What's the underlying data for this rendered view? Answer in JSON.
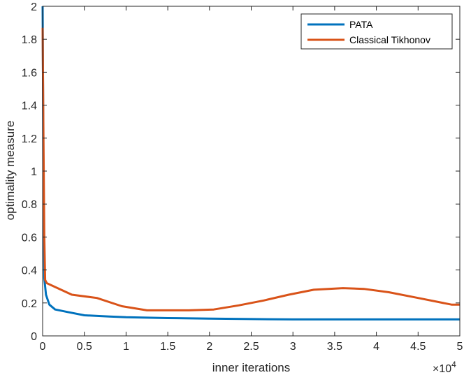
{
  "chart_data": {
    "type": "line",
    "title": "",
    "xlabel": "inner iterations",
    "ylabel": "optimality measure",
    "x_exponent_label": "×10",
    "x_exponent_power": "4",
    "xlim": [
      0,
      5
    ],
    "ylim": [
      0,
      2
    ],
    "x_ticks": [
      "0",
      "0.5",
      "1",
      "1.5",
      "2",
      "2.5",
      "3",
      "3.5",
      "4",
      "4.5",
      "5"
    ],
    "y_ticks": [
      "0",
      "0.2",
      "0.4",
      "0.6",
      "0.8",
      "1",
      "1.2",
      "1.4",
      "1.6",
      "1.8",
      "2"
    ],
    "grid": false,
    "legend": "top-right",
    "series": [
      {
        "name": "PATA",
        "color": "#0072BD",
        "x": [
          0,
          0.005,
          0.01,
          0.02,
          0.04,
          0.08,
          0.15,
          0.3,
          0.5,
          0.8,
          1.0,
          1.5,
          2.0,
          2.5,
          3.0,
          3.5,
          4.0,
          4.5,
          5.0
        ],
        "y": [
          2.0,
          1.5,
          0.8,
          0.35,
          0.25,
          0.19,
          0.16,
          0.145,
          0.125,
          0.118,
          0.113,
          0.108,
          0.105,
          0.102,
          0.1,
          0.1,
          0.1,
          0.1,
          0.1
        ]
      },
      {
        "name": "Classical Tikhonov",
        "color": "#D95319",
        "x": [
          0,
          0.01,
          0.02,
          0.03,
          0.05,
          0.35,
          0.65,
          0.95,
          1.25,
          1.5,
          1.75,
          2.05,
          2.35,
          2.65,
          2.95,
          3.25,
          3.6,
          3.85,
          4.15,
          4.5,
          4.9,
          5.0
        ],
        "y": [
          1.87,
          1.2,
          0.6,
          0.34,
          0.32,
          0.25,
          0.23,
          0.18,
          0.155,
          0.155,
          0.155,
          0.16,
          0.185,
          0.215,
          0.25,
          0.28,
          0.29,
          0.285,
          0.265,
          0.23,
          0.19,
          0.19
        ]
      }
    ]
  }
}
